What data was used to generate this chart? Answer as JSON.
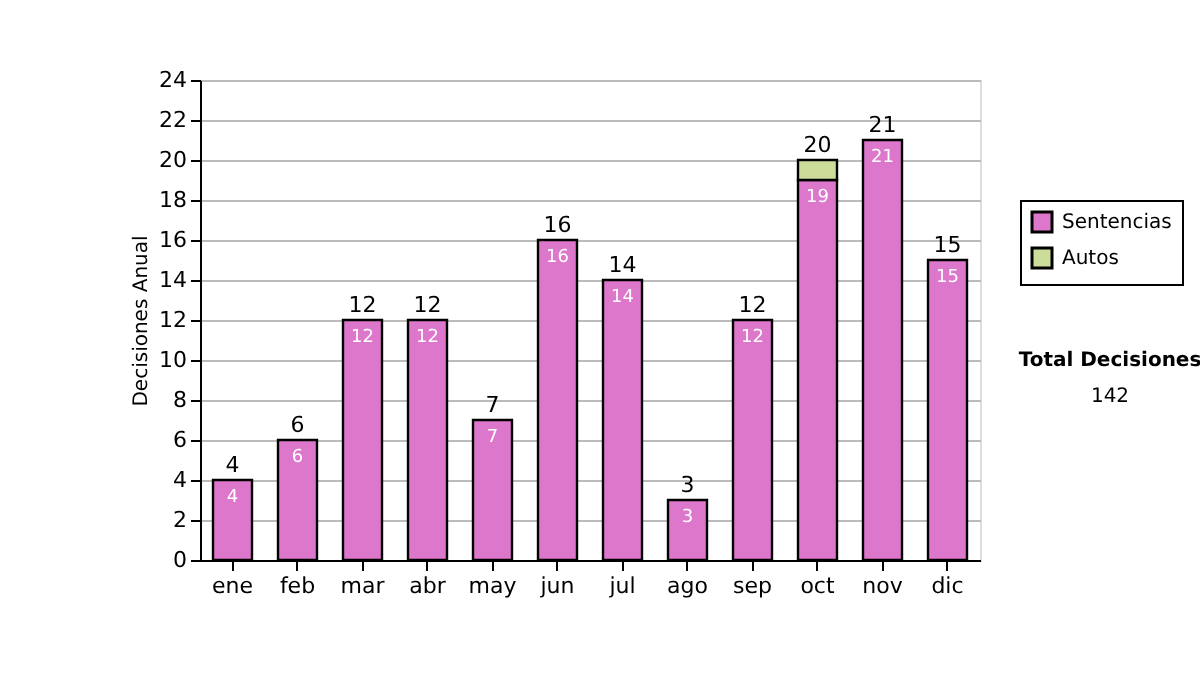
{
  "chart_data": {
    "type": "bar",
    "stacked": true,
    "ylabel": "Decisiones Anual",
    "categories": [
      "ene",
      "feb",
      "mar",
      "abr",
      "may",
      "jun",
      "jul",
      "ago",
      "sep",
      "oct",
      "nov",
      "dic"
    ],
    "series": [
      {
        "name": "Sentencias",
        "color": "#dd77cc",
        "values": [
          4,
          6,
          12,
          12,
          7,
          16,
          14,
          3,
          12,
          19,
          21,
          15
        ],
        "value_labels": [
          "4",
          "6",
          "12",
          "12",
          "7",
          "16",
          "14",
          "3",
          "12",
          "19",
          "21",
          "15"
        ]
      },
      {
        "name": "Autos",
        "color": "#ccdd99",
        "values": [
          0,
          0,
          0,
          0,
          0,
          0,
          0,
          0,
          0,
          1,
          0,
          0
        ]
      }
    ],
    "totals": [
      "4",
      "6",
      "12",
      "12",
      "7",
      "16",
      "14",
      "3",
      "12",
      "20",
      "21",
      "15"
    ],
    "ylim": [
      0,
      24
    ],
    "yticks": [
      0,
      2,
      4,
      6,
      8,
      10,
      12,
      14,
      16,
      18,
      20,
      22,
      24
    ],
    "grid": "y",
    "legend": "right",
    "annotations": [
      "Total Decisiones",
      "142"
    ]
  }
}
